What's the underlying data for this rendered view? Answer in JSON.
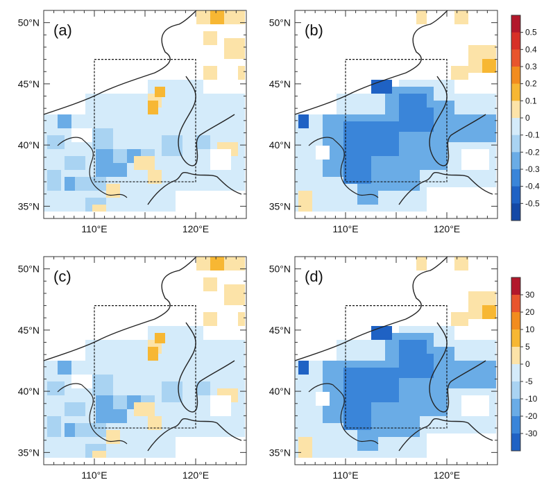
{
  "figure": {
    "panels": [
      {
        "label": "(a)",
        "map": 0
      },
      {
        "label": "(b)",
        "map": 1
      },
      {
        "label": "(c)",
        "map": 0
      },
      {
        "label": "(d)",
        "map": 1
      }
    ],
    "lat_ticks": [
      "35°N",
      "40°N",
      "45°N",
      "50°N"
    ],
    "lon_ticks": [
      "110°E",
      "120°E"
    ],
    "lon_range": [
      105,
      125
    ],
    "lat_range": [
      34,
      51
    ],
    "study_box": {
      "lon": [
        110,
        120
      ],
      "lat": [
        37,
        47
      ]
    }
  },
  "colorbars": [
    {
      "ticks": [
        "0.5",
        "0.4",
        "0.3",
        "0.2",
        "0.1",
        "0",
        "-0.1",
        "-0.2",
        "-0.3",
        "-0.4",
        "-0.5"
      ],
      "colors": [
        "#b2182b",
        "#d73027",
        "#e8552d",
        "#f28c1e",
        "#f7b733",
        "#fce3a8",
        "#d4ebfa",
        "#a9d3f2",
        "#6aace6",
        "#3a85d9",
        "#1f62c4",
        "#1449a6"
      ]
    },
    {
      "ticks": [
        "30",
        "20",
        "10",
        "5",
        "0",
        "-5",
        "-10",
        "-20",
        "-30"
      ],
      "colors": [
        "#b2182b",
        "#e8552d",
        "#f28c1e",
        "#f7b733",
        "#fce3a8",
        "#d4ebfa",
        "#a9d3f2",
        "#6aace6",
        "#3a85d9",
        "#1f62c4"
      ]
    }
  ]
}
